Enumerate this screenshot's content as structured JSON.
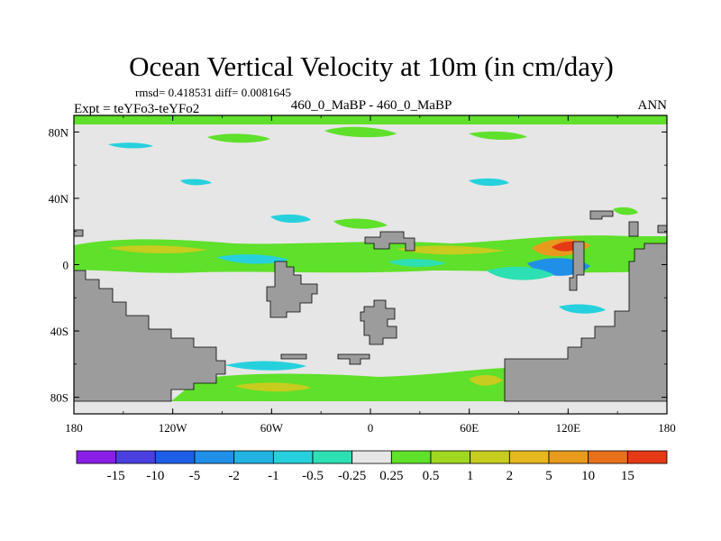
{
  "chart_data": {
    "type": "contour-map",
    "title": "Ocean Vertical Velocity at 10m (in cm/day)",
    "stats_line": "rmsd= 0.418531 diff= 0.0081645",
    "experiment": "Expt = teYFo3-teYFo2",
    "case": "460_0_MaBP - 460_0_MaBP",
    "season": "ANN",
    "x_ticks": [
      "180",
      "120W",
      "60W",
      "0",
      "60E",
      "120E",
      "180"
    ],
    "y_ticks": [
      "80N",
      "40N",
      "0",
      "40S",
      "80S"
    ],
    "xlim": [
      -180,
      180
    ],
    "ylim": [
      -90,
      90
    ],
    "colorbar": {
      "colors": [
        "#8a1ee6",
        "#4b3fe0",
        "#1e5ee6",
        "#1f8fe8",
        "#22b3e3",
        "#26d1dd",
        "#2de0b3",
        "#e6e6e6",
        "#5fe02a",
        "#9fd81f",
        "#c7cc1e",
        "#e6b81f",
        "#e89a1c",
        "#e8701a",
        "#e63a17"
      ],
      "labels": [
        "-15",
        "-10",
        "-5",
        "-2",
        "-1",
        "-0.5",
        "-0.25",
        "0.25",
        "0.5",
        "1",
        "2",
        "5",
        "10",
        "15"
      ]
    },
    "colors": {
      "land": "#9c9c9c",
      "ocean_background": "#e6e6e6"
    }
  }
}
